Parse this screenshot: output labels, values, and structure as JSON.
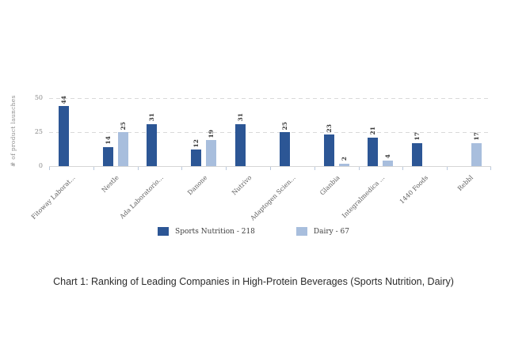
{
  "caption": "Chart 1: Ranking of Leading Companies in High-Protein Beverages (Sports Nutrition, Dairy)",
  "colors": {
    "sports_nutrition": "#2c5695",
    "dairy": "#a8bedd",
    "gridline": "#d9d9d9",
    "axis_line": "#d6d6d6",
    "axis_tick": "#b9c8dd",
    "tick_label": "#8a8a8a",
    "data_label": "#3a3a3a",
    "category_label": "#5f5f5f",
    "legend_text": "#404040",
    "caption_text": "#2b2b2b"
  },
  "y_axis": {
    "label": "# of product launches",
    "ticks": [
      0,
      25,
      50
    ],
    "max": 50
  },
  "legend": {
    "position": "bottom-center",
    "items": [
      {
        "label": "Sports Nutrition - 218",
        "color": "#2c5695"
      },
      {
        "label": "Dairy - 67",
        "color": "#a8bedd"
      }
    ]
  },
  "chart_data": {
    "type": "bar",
    "title": "",
    "xlabel": "",
    "ylabel": "# of product launches",
    "ylim": [
      0,
      50
    ],
    "grid": "horizontal dashed at 25 and 50",
    "legend_position": "bottom",
    "categories": [
      "Fitoway Laborat...",
      "Nestle",
      "Ada Laboratorio...",
      "Danone",
      "Nutrivo",
      "Adaptogen Scien...",
      "Glanbia",
      "Integralmedica ...",
      "1440 Foods",
      "Rebbl"
    ],
    "series": [
      {
        "name": "Sports Nutrition",
        "total": 218,
        "color": "#2c5695",
        "values": [
          44,
          14,
          31,
          12,
          31,
          25,
          23,
          21,
          17,
          null
        ]
      },
      {
        "name": "Dairy",
        "total": 67,
        "color": "#a8bedd",
        "values": [
          null,
          25,
          null,
          19,
          null,
          null,
          2,
          4,
          null,
          17
        ]
      }
    ]
  }
}
